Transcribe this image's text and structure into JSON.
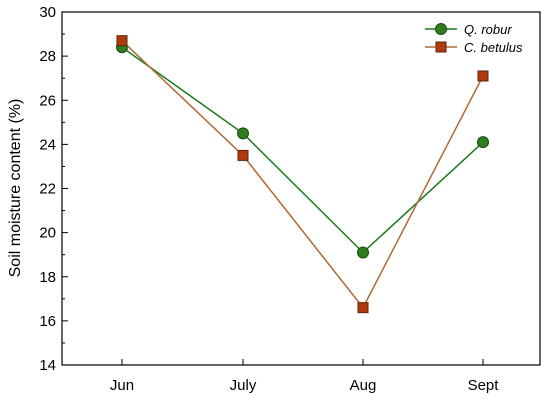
{
  "chart_data": {
    "type": "line",
    "ylabel": "Soil moisture content (%)",
    "xlabel": "",
    "categories": [
      "Jun",
      "July",
      "Aug",
      "Sept"
    ],
    "ylim": [
      14,
      30
    ],
    "yticks": [
      14,
      16,
      18,
      20,
      22,
      24,
      26,
      28,
      30
    ],
    "grid": false,
    "legend_position": "top-right",
    "series": [
      {
        "name": "Q. robur",
        "values": [
          28.4,
          24.5,
          19.1,
          24.1
        ],
        "line_color": "#1f7a1f",
        "marker": "circle",
        "marker_color": "#2e7d1f"
      },
      {
        "name": "C. betulus",
        "values": [
          28.7,
          23.5,
          16.6,
          27.1
        ],
        "line_color": "#b06a3b",
        "marker": "square",
        "marker_color": "#b03a0e"
      }
    ]
  }
}
